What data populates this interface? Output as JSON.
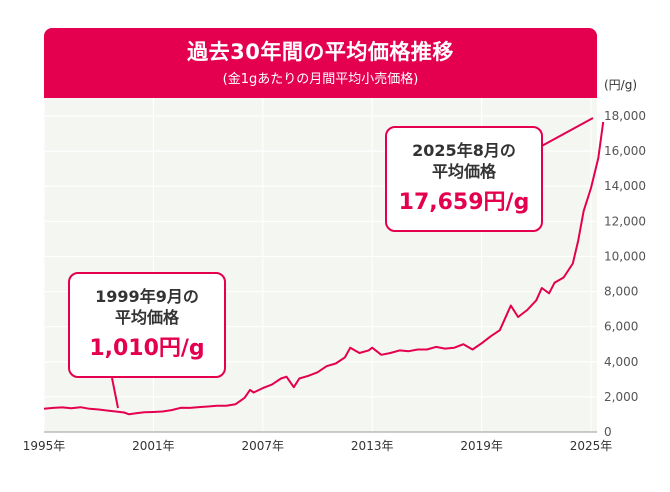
{
  "header": {
    "title": "過去30年間の平均価格推移",
    "subtitle": "(金1gあたりの月間平均小売価格)"
  },
  "unit_label": "(円/g)",
  "callouts": {
    "latest": {
      "date": "2025年8月の",
      "label": "平均価格",
      "price": "17,659円/g"
    },
    "earliest": {
      "date": "1999年9月の",
      "label": "平均価格",
      "price": "1,010円/g"
    }
  },
  "colors": {
    "accent": "#e4004f",
    "line": "#e4004f",
    "plot_bg": "#f3f6f1",
    "grid": "#ffffff"
  },
  "chart_data": {
    "type": "line",
    "title": "過去30年間の平均価格推移",
    "subtitle": "(金1gあたりの月間平均小売価格)",
    "xlabel": "",
    "ylabel": "(円/g)",
    "x_ticks": [
      "1995年",
      "2001年",
      "2007年",
      "2013年",
      "2019年",
      "2025年"
    ],
    "y_ticks": [
      "0",
      "2,000",
      "4,000",
      "6,000",
      "8,000",
      "10,000",
      "12,000",
      "14,000",
      "16,000",
      "18,000"
    ],
    "xlim": [
      1995,
      2025
    ],
    "ylim": [
      0,
      18000
    ],
    "grid": true,
    "series": [
      {
        "x": [
          1995.0,
          1995.5,
          1996.0,
          1996.5,
          1997.0,
          1997.5,
          1998.0,
          1998.5,
          1999.0,
          1999.4,
          1999.67,
          2000.0,
          2000.5,
          2001.0,
          2001.5,
          2002.0,
          2002.5,
          2003.0,
          2003.5,
          2004.0,
          2004.5,
          2005.0,
          2005.5,
          2006.0,
          2006.3,
          2006.5,
          2007.0,
          2007.5,
          2008.0,
          2008.3,
          2008.7,
          2009.0,
          2009.5,
          2010.0,
          2010.5,
          2011.0,
          2011.5,
          2011.8,
          2012.3,
          2012.8,
          2013.0,
          2013.5,
          2014.0,
          2014.5,
          2015.0,
          2015.5,
          2016.0,
          2016.5,
          2017.0,
          2017.5,
          2018.0,
          2018.5,
          2019.0,
          2019.5,
          2020.0,
          2020.6,
          2021.0,
          2021.5,
          2022.0,
          2022.3,
          2022.7,
          2023.0,
          2023.5,
          2024.0,
          2024.3,
          2024.6,
          2025.0,
          2025.4,
          2025.67
        ],
        "y": [
          1320,
          1370,
          1400,
          1350,
          1410,
          1320,
          1280,
          1220,
          1160,
          1110,
          1010,
          1060,
          1120,
          1140,
          1170,
          1250,
          1380,
          1370,
          1420,
          1450,
          1500,
          1500,
          1580,
          1950,
          2400,
          2250,
          2500,
          2700,
          3050,
          3150,
          2550,
          3050,
          3200,
          3400,
          3750,
          3900,
          4250,
          4800,
          4500,
          4650,
          4800,
          4400,
          4500,
          4650,
          4600,
          4700,
          4700,
          4850,
          4750,
          4800,
          5000,
          4700,
          5050,
          5450,
          5800,
          7200,
          6550,
          6950,
          7500,
          8200,
          7900,
          8500,
          8800,
          9600,
          10900,
          12600,
          13900,
          15600,
          17659
        ]
      }
    ],
    "annotations": [
      {
        "x": 2025.67,
        "y": 17659,
        "text": "2025年8月の平均価格 17,659円/g"
      },
      {
        "x": 1999.67,
        "y": 1010,
        "text": "1999年9月の平均価格 1,010円/g"
      }
    ]
  }
}
